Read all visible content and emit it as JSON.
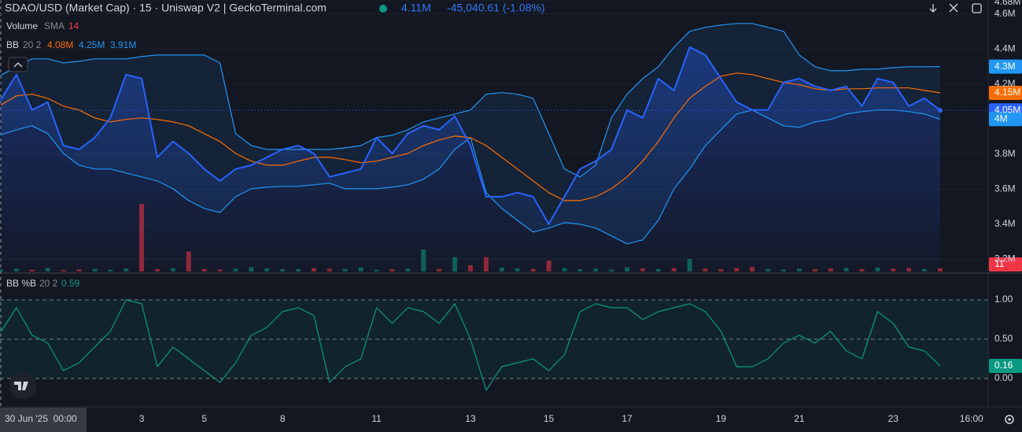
{
  "chart_data": [
    {
      "type": "line",
      "title": "SDAO/USD (Market Cap) · 15 · Uniswap V2 | GeckoTerminal.com",
      "change_label": "-45,040.61 (-1.08%)",
      "crosshair_time": "30 Jun '25  00:00",
      "indicator": {
        "name": "BB",
        "params": "20 2"
      },
      "categories": [
        null,
        null,
        null,
        null,
        null,
        null,
        null,
        null,
        null,
        "3",
        null,
        null,
        null,
        "5",
        null,
        null,
        null,
        null,
        "8",
        null,
        null,
        null,
        null,
        null,
        "11",
        null,
        null,
        null,
        null,
        null,
        "13",
        null,
        null,
        null,
        null,
        "15",
        null,
        null,
        null,
        null,
        "17",
        null,
        null,
        null,
        null,
        null,
        "19",
        null,
        null,
        null,
        null,
        "21",
        null,
        null,
        null,
        null,
        null,
        "23",
        null,
        null,
        null,
        null,
        "16:00"
      ],
      "ylim": [
        3130000,
        4680000
      ],
      "yticks": [
        {
          "value": 3200000,
          "label": "3.2M"
        },
        {
          "value": 3400000,
          "label": "3.4M"
        },
        {
          "value": 3600000,
          "label": "3.6M"
        },
        {
          "value": 3800000,
          "label": "3.8M"
        },
        {
          "value": 4200000,
          "label": "4.2M"
        },
        {
          "value": 4400000,
          "label": "4.4M"
        },
        {
          "value": 4600000,
          "label": "4.6M"
        },
        {
          "value": 4680000,
          "label": "4.68M"
        }
      ],
      "grid": true,
      "series": [
        {
          "color": "#2962ff",
          "crosshair_label": "4.11M",
          "last_label": "4.05M",
          "values": [
            4110000,
            4254000,
            4052000,
            4097000,
            3849000,
            3827000,
            3894000,
            4007000,
            4254000,
            4231000,
            3782000,
            3872000,
            3804000,
            3715000,
            3647000,
            3715000,
            3737000,
            3782000,
            3827000,
            3849000,
            3804000,
            3670000,
            3692000,
            3715000,
            3894000,
            3804000,
            3917000,
            3962000,
            3939000,
            4016000,
            3849000,
            3557000,
            3557000,
            3580000,
            3557000,
            3400000,
            3557000,
            3715000,
            3760000,
            3827000,
            4052000,
            4007000,
            4231000,
            4164000,
            4411000,
            4366000,
            4231000,
            4097000,
            4052000,
            4052000,
            4209000,
            4231000,
            4187000,
            4164000,
            4187000,
            4074000,
            4231000,
            4209000,
            4074000,
            4119000,
            4050000,
            null,
            null
          ]
        },
        {
          "color": "#ff6d00",
          "crosshair_label": "4.08M",
          "last_label": "4.15M",
          "values": [
            4080000,
            4133000,
            4142000,
            4119000,
            4074000,
            4052000,
            4007000,
            3984000,
            3998000,
            4007000,
            3998000,
            3984000,
            3962000,
            3917000,
            3872000,
            3804000,
            3760000,
            3737000,
            3737000,
            3760000,
            3782000,
            3782000,
            3769000,
            3751000,
            3760000,
            3782000,
            3804000,
            3849000,
            3881000,
            3903000,
            3894000,
            3849000,
            3782000,
            3715000,
            3647000,
            3580000,
            3535000,
            3535000,
            3557000,
            3602000,
            3670000,
            3760000,
            3872000,
            4007000,
            4119000,
            4187000,
            4245000,
            4263000,
            4254000,
            4231000,
            4209000,
            4196000,
            4173000,
            4164000,
            4173000,
            4173000,
            4178000,
            4178000,
            4178000,
            4164000,
            4150000,
            null,
            null
          ]
        },
        {
          "color": "#2196f3",
          "crosshair_label": "4.25M",
          "last_label": "4.3M",
          "values": [
            4250000,
            4299000,
            4344000,
            4344000,
            4321000,
            4330000,
            4344000,
            4344000,
            4344000,
            4357000,
            4366000,
            4366000,
            4366000,
            4366000,
            4321000,
            3917000,
            3849000,
            3827000,
            3827000,
            3827000,
            3827000,
            3827000,
            3836000,
            3849000,
            3894000,
            3908000,
            3939000,
            3984000,
            4007000,
            4029000,
            4052000,
            4142000,
            4151000,
            4142000,
            4119000,
            3917000,
            3715000,
            3670000,
            3737000,
            4007000,
            4142000,
            4231000,
            4299000,
            4411000,
            4501000,
            4524000,
            4537000,
            4546000,
            4546000,
            4524000,
            4501000,
            4366000,
            4299000,
            4276000,
            4276000,
            4285000,
            4285000,
            4294000,
            4299000,
            4299000,
            4300000,
            null,
            null
          ]
        },
        {
          "color": "#2196f3",
          "crosshair_label": "3.91M",
          "last_label": "4M",
          "values": [
            3910000,
            3939000,
            3962000,
            3917000,
            3804000,
            3737000,
            3715000,
            3715000,
            3692000,
            3670000,
            3647000,
            3602000,
            3535000,
            3490000,
            3467000,
            3557000,
            3602000,
            3611000,
            3616000,
            3616000,
            3625000,
            3634000,
            3602000,
            3602000,
            3602000,
            3611000,
            3625000,
            3656000,
            3715000,
            3827000,
            3894000,
            3580000,
            3490000,
            3422000,
            3355000,
            3378000,
            3409000,
            3400000,
            3378000,
            3333000,
            3288000,
            3310000,
            3422000,
            3602000,
            3715000,
            3849000,
            3939000,
            4029000,
            4052000,
            4007000,
            3962000,
            3953000,
            3984000,
            3998000,
            4029000,
            4043000,
            4052000,
            4052000,
            4043000,
            4029000,
            4000000,
            null,
            null
          ]
        }
      ],
      "volume": {
        "name": "Volume",
        "params": "SMA",
        "length": "14",
        "last_label": "11",
        "up_color": "#089981",
        "down_color": "#f23645",
        "values": [
          8,
          10,
          6,
          12,
          5,
          7,
          9,
          6,
          10,
          236,
          8,
          12,
          70,
          9,
          7,
          10,
          15,
          11,
          8,
          9,
          12,
          10,
          9,
          14,
          6,
          8,
          10,
          77,
          9,
          50,
          22,
          50,
          14,
          11,
          9,
          38,
          12,
          8,
          10,
          7,
          15,
          11,
          9,
          12,
          44,
          10,
          8,
          12,
          16,
          9,
          7,
          10,
          8,
          11,
          13,
          9,
          14,
          10,
          12,
          9,
          11,
          null,
          null
        ]
      }
    },
    {
      "type": "line",
      "title": "BB %B",
      "params": "20 2",
      "ylim": [
        -0.36,
        1.33
      ],
      "yticks": [
        {
          "value": 0,
          "label": "0.00"
        },
        {
          "value": 0.5,
          "label": "0.50"
        },
        {
          "value": 1,
          "label": "1.00"
        }
      ],
      "series": [
        {
          "color": "#089981",
          "crosshair_label": "0.59",
          "last_label": "0.16",
          "values": [
            0.59,
            0.9,
            0.55,
            0.45,
            0.1,
            0.2,
            0.4,
            0.6,
            1.0,
            0.95,
            0.15,
            0.4,
            0.25,
            0.1,
            -0.05,
            0.2,
            0.55,
            0.65,
            0.85,
            0.9,
            0.8,
            -0.05,
            0.15,
            0.25,
            0.9,
            0.7,
            0.9,
            0.85,
            0.7,
            0.95,
            0.5,
            -0.15,
            0.15,
            0.2,
            0.25,
            0.1,
            0.3,
            0.85,
            0.95,
            0.9,
            0.9,
            0.75,
            0.85,
            0.9,
            0.95,
            0.85,
            0.6,
            0.15,
            0.15,
            0.25,
            0.45,
            0.55,
            0.45,
            0.6,
            0.35,
            0.25,
            0.85,
            0.7,
            0.4,
            0.35,
            0.16,
            null,
            null
          ]
        }
      ]
    }
  ]
}
